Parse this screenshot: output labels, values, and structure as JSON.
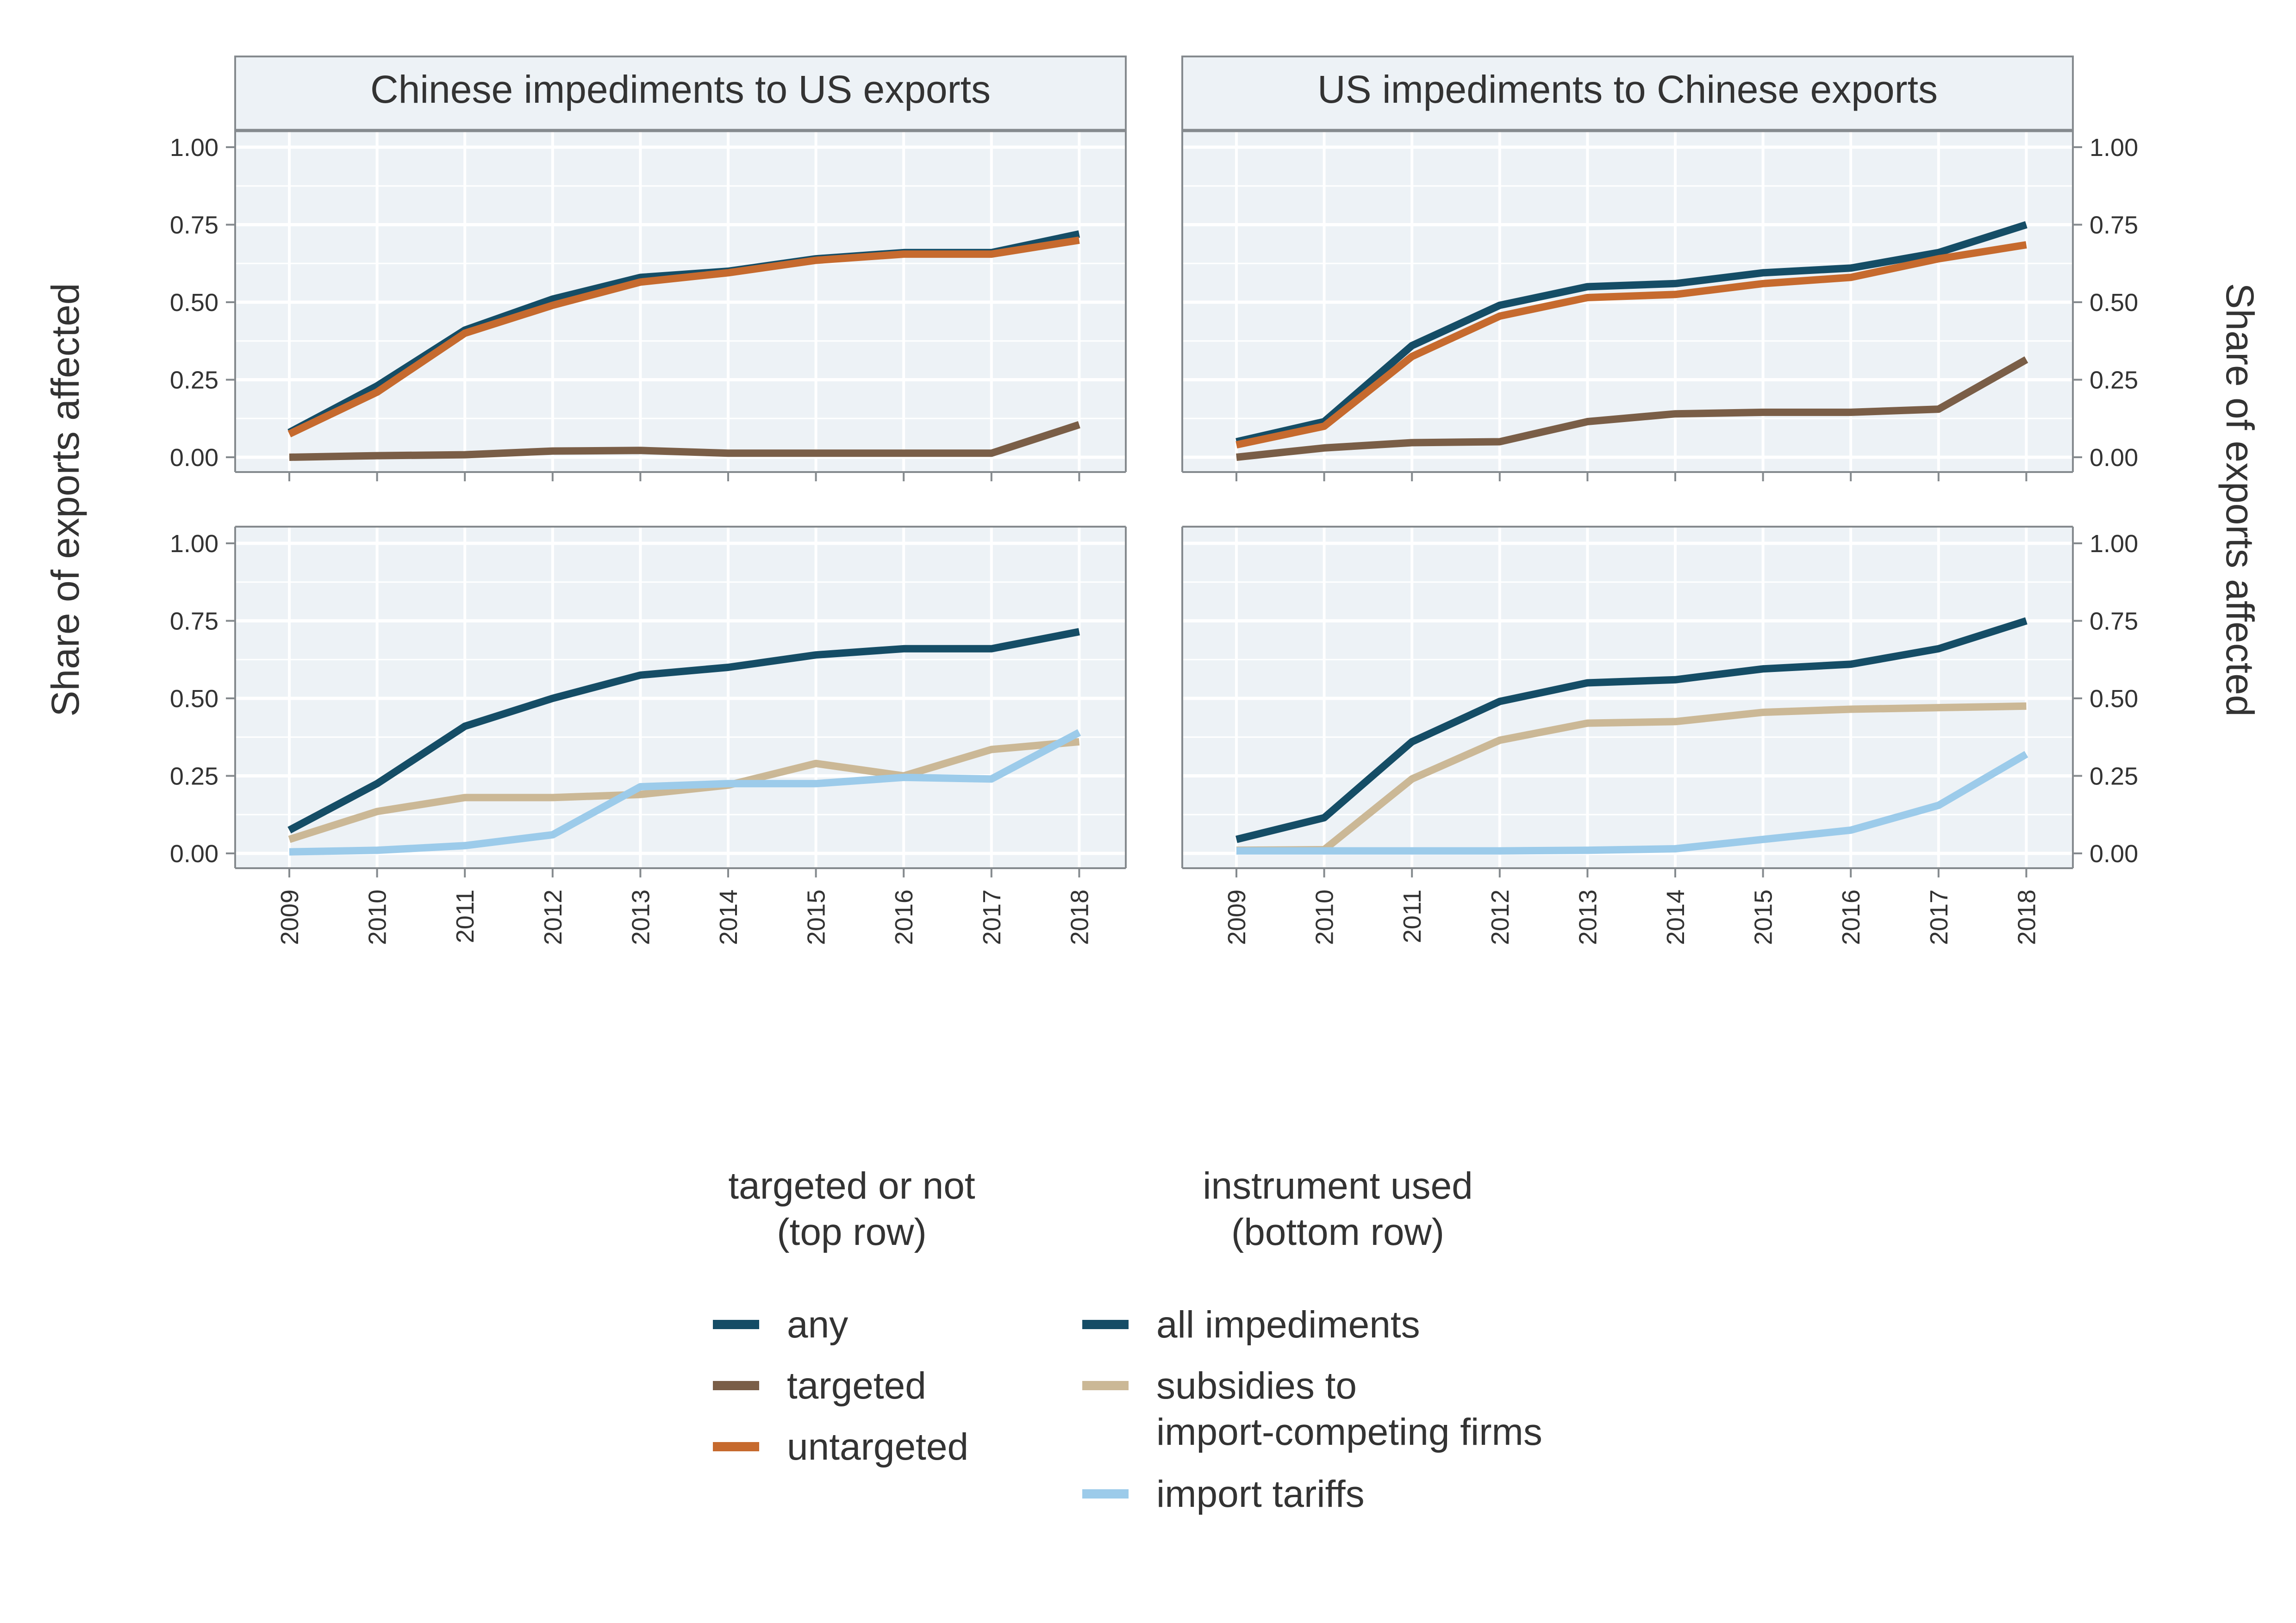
{
  "y_axis_title_left": "Share of exports affected",
  "y_axis_title_right": "Share of exports affected",
  "colors": {
    "any": "#154d66",
    "targeted": "#7a5e47",
    "untargeted": "#c66a2e",
    "subsidies": "#cbb896",
    "tariffs": "#9ccbea",
    "panel_bg": "#edf2f6",
    "strip_bg": "#edf2f6",
    "grid": "#ffffff",
    "frame": "#858a8e"
  },
  "legend": {
    "group1_title_line1": "targeted or not",
    "group1_title_line2": "(top row)",
    "group2_title_line1": "instrument used",
    "group2_title_line2": "(bottom row)",
    "group1_items": [
      {
        "label": "any",
        "color": "#154d66"
      },
      {
        "label": "targeted",
        "color": "#7a5e47"
      },
      {
        "label": "untargeted",
        "color": "#c66a2e"
      }
    ],
    "group2_items": [
      {
        "label_lines": [
          "all impediments"
        ],
        "color": "#154d66"
      },
      {
        "label_lines": [
          "subsidies to",
          "import-competing firms"
        ],
        "color": "#cbb896"
      },
      {
        "label_lines": [
          "import tariffs"
        ],
        "color": "#9ccbea"
      }
    ]
  },
  "chart_data": [
    {
      "type": "line",
      "title": "Chinese impediments to US exports",
      "row": "top",
      "x": [
        2009,
        2010,
        2011,
        2012,
        2013,
        2014,
        2015,
        2016,
        2017,
        2018
      ],
      "ylim": [
        0,
        1
      ],
      "yticks": [
        "0.00",
        "0.25",
        "0.50",
        "0.75",
        "1.00"
      ],
      "series": [
        {
          "name": "any",
          "color": "#154d66",
          "values": [
            0.08,
            0.23,
            0.41,
            0.51,
            0.58,
            0.6,
            0.64,
            0.66,
            0.66,
            0.72
          ]
        },
        {
          "name": "targeted",
          "color": "#7a5e47",
          "values": [
            0.0,
            0.005,
            0.008,
            0.02,
            0.022,
            0.013,
            0.013,
            0.013,
            0.013,
            0.105
          ]
        },
        {
          "name": "untargeted",
          "color": "#c66a2e",
          "values": [
            0.075,
            0.21,
            0.4,
            0.49,
            0.565,
            0.595,
            0.635,
            0.655,
            0.655,
            0.7
          ]
        }
      ]
    },
    {
      "type": "line",
      "title": "US impediments to Chinese exports",
      "row": "top",
      "x": [
        2009,
        2010,
        2011,
        2012,
        2013,
        2014,
        2015,
        2016,
        2017,
        2018
      ],
      "ylim": [
        0,
        1
      ],
      "yticks": [
        "0.00",
        "0.25",
        "0.50",
        "0.75",
        "1.00"
      ],
      "series": [
        {
          "name": "any",
          "color": "#154d66",
          "values": [
            0.05,
            0.115,
            0.36,
            0.49,
            0.55,
            0.56,
            0.595,
            0.61,
            0.66,
            0.75
          ]
        },
        {
          "name": "targeted",
          "color": "#7a5e47",
          "values": [
            0.0,
            0.03,
            0.047,
            0.05,
            0.115,
            0.14,
            0.145,
            0.145,
            0.155,
            0.315
          ]
        },
        {
          "name": "untargeted",
          "color": "#c66a2e",
          "values": [
            0.04,
            0.1,
            0.325,
            0.455,
            0.515,
            0.525,
            0.56,
            0.58,
            0.64,
            0.685
          ]
        }
      ]
    },
    {
      "type": "line",
      "row": "bottom",
      "x": [
        2009,
        2010,
        2011,
        2012,
        2013,
        2014,
        2015,
        2016,
        2017,
        2018
      ],
      "ylim": [
        0,
        1
      ],
      "yticks": [
        "0.00",
        "0.25",
        "0.50",
        "0.75",
        "1.00"
      ],
      "series": [
        {
          "name": "subsidies",
          "color": "#cbb896",
          "values": [
            0.045,
            0.135,
            0.18,
            0.18,
            0.19,
            0.22,
            0.29,
            0.25,
            0.335,
            0.36
          ]
        },
        {
          "name": "tariffs",
          "color": "#9ccbea",
          "values": [
            0.005,
            0.01,
            0.025,
            0.06,
            0.215,
            0.225,
            0.225,
            0.245,
            0.24,
            0.39
          ]
        },
        {
          "name": "all impediments",
          "color": "#154d66",
          "values": [
            0.075,
            0.225,
            0.41,
            0.5,
            0.575,
            0.6,
            0.64,
            0.66,
            0.66,
            0.715
          ]
        }
      ]
    },
    {
      "type": "line",
      "row": "bottom",
      "x": [
        2009,
        2010,
        2011,
        2012,
        2013,
        2014,
        2015,
        2016,
        2017,
        2018
      ],
      "ylim": [
        0,
        1
      ],
      "yticks": [
        "0.00",
        "0.25",
        "0.50",
        "0.75",
        "1.00"
      ],
      "series": [
        {
          "name": "subsidies",
          "color": "#cbb896",
          "values": [
            0.01,
            0.012,
            0.24,
            0.365,
            0.42,
            0.425,
            0.455,
            0.465,
            0.47,
            0.475
          ]
        },
        {
          "name": "tariffs",
          "color": "#9ccbea",
          "values": [
            0.008,
            0.008,
            0.008,
            0.008,
            0.01,
            0.015,
            0.045,
            0.075,
            0.155,
            0.32
          ]
        },
        {
          "name": "all impediments",
          "color": "#154d66",
          "values": [
            0.045,
            0.115,
            0.36,
            0.49,
            0.55,
            0.56,
            0.595,
            0.61,
            0.66,
            0.75
          ]
        }
      ]
    }
  ]
}
